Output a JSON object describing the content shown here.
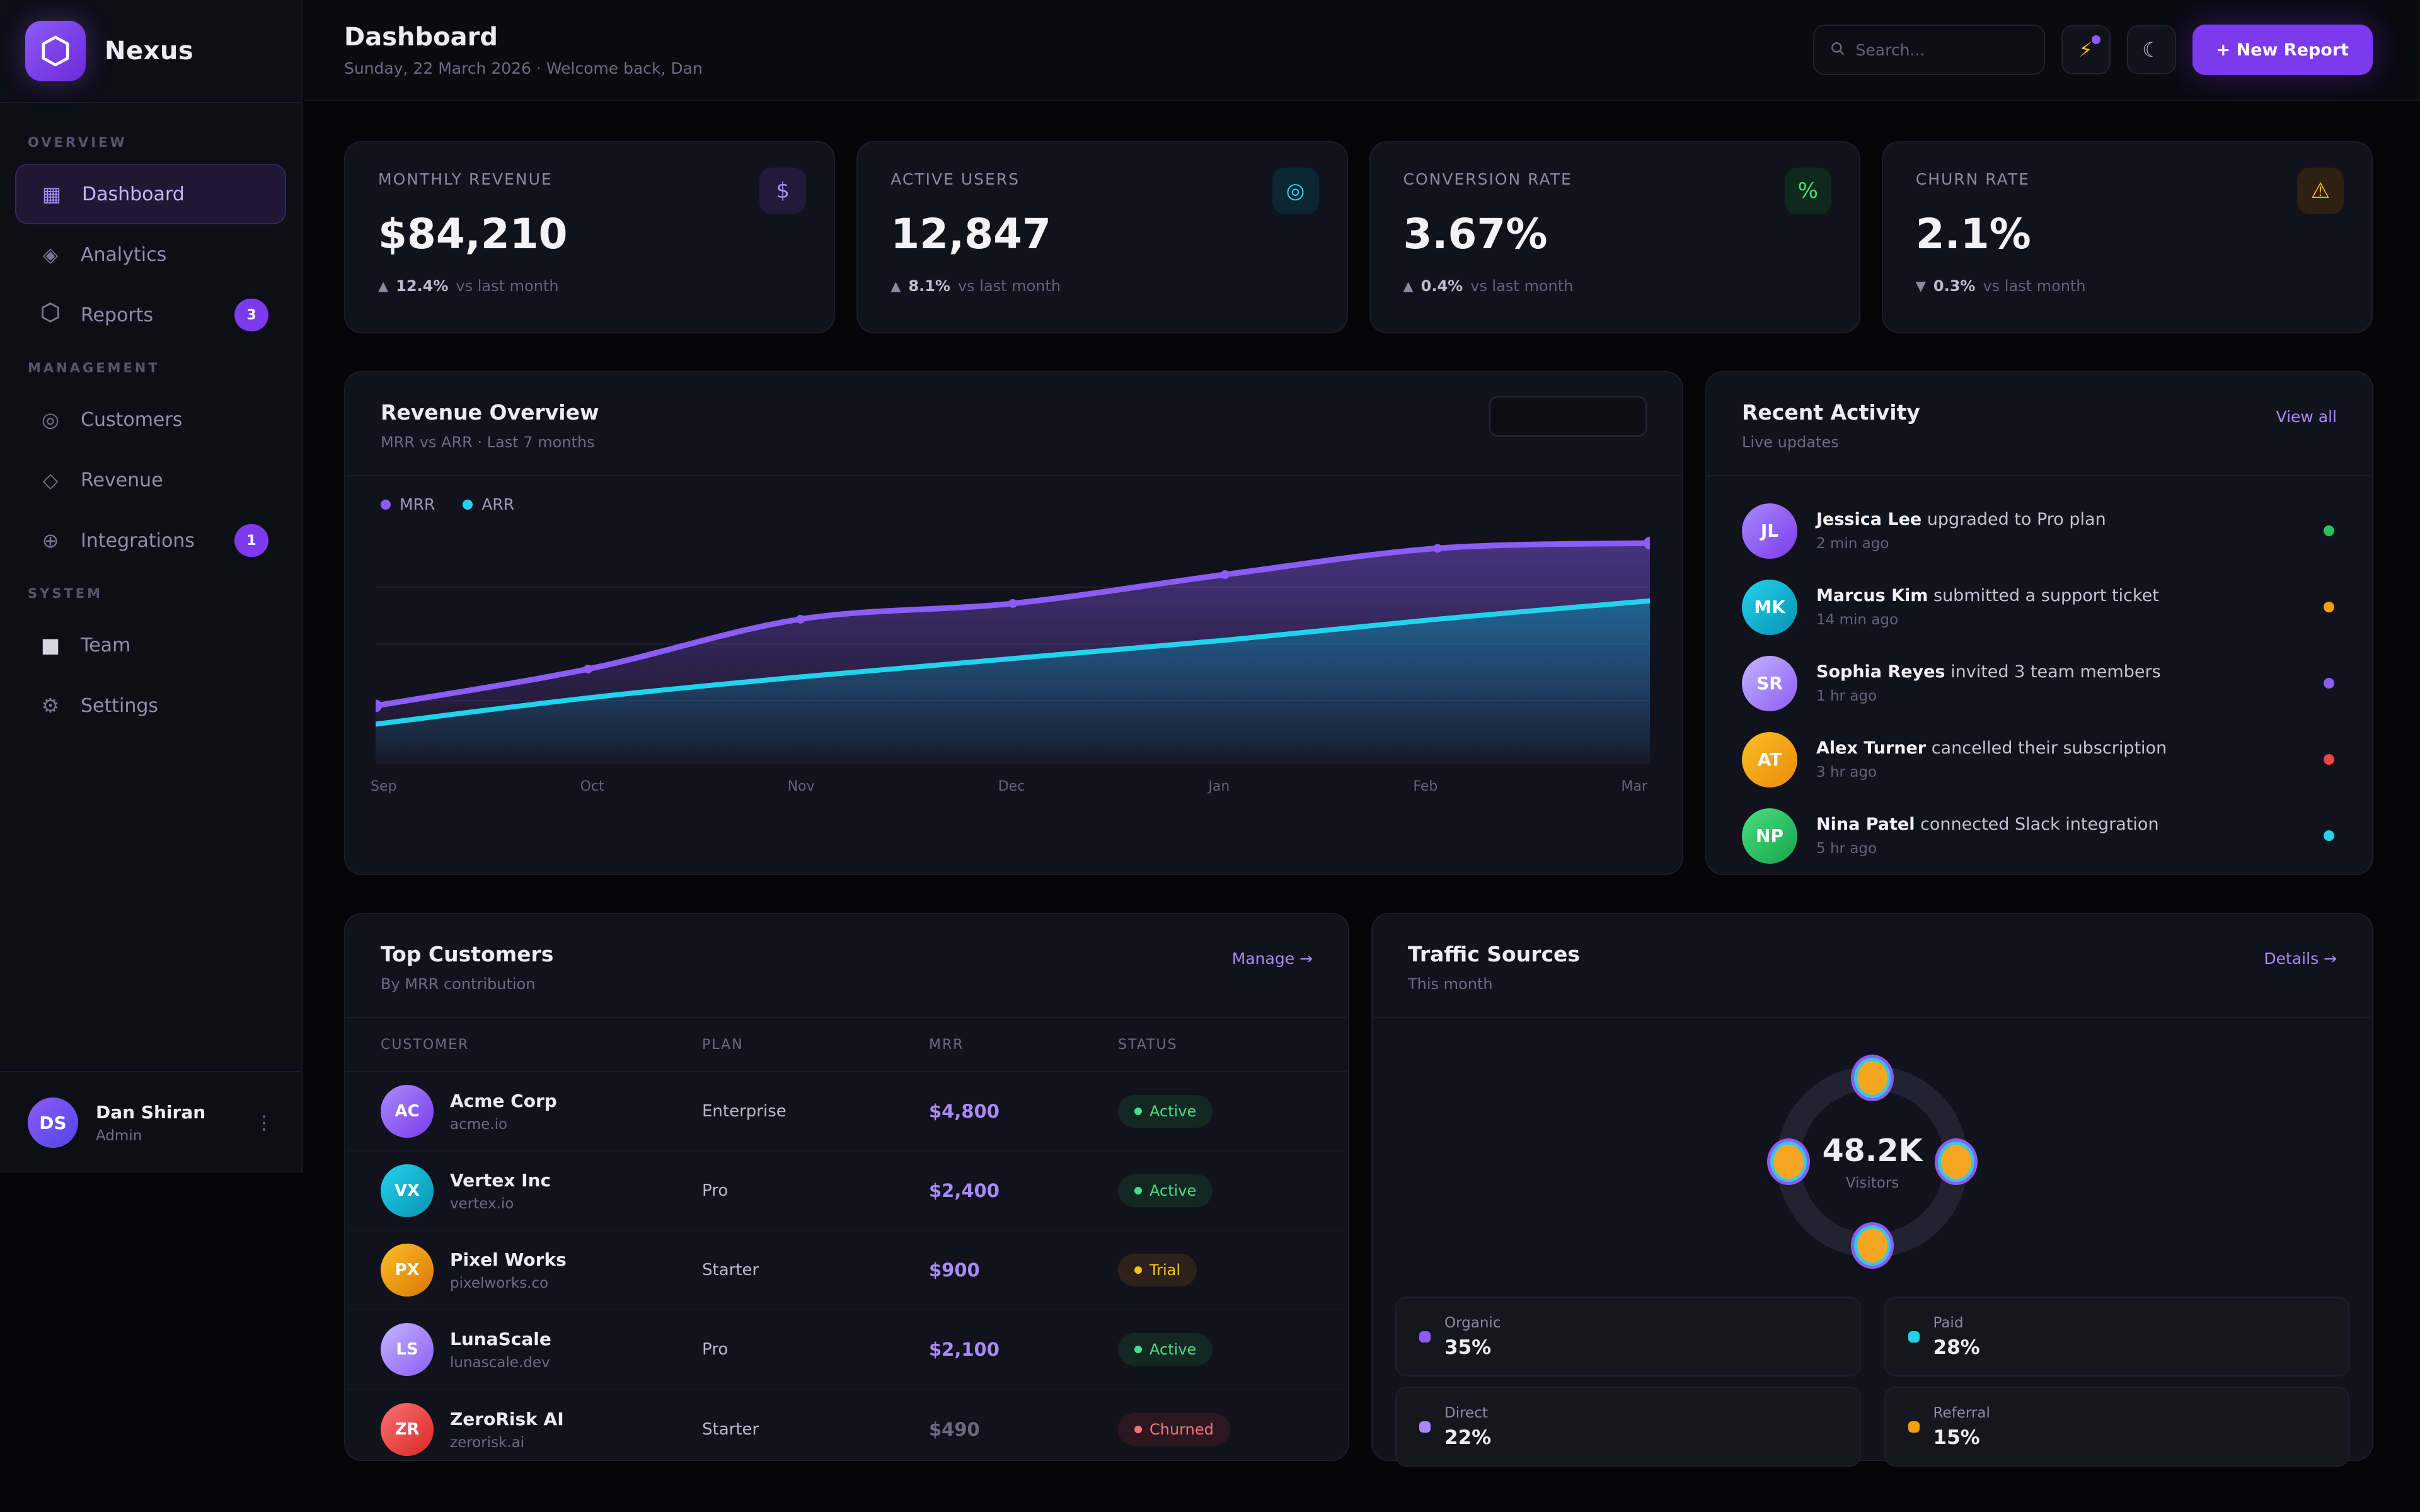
{
  "app": {
    "name": "Nexus"
  },
  "sidebar": {
    "groups": [
      {
        "label": "OVERVIEW",
        "items": [
          {
            "icon": "grid",
            "label": "Dashboard",
            "active": true
          },
          {
            "icon": "diamond-dot",
            "label": "Analytics"
          },
          {
            "icon": "hexagon",
            "label": "Reports",
            "badge": "3"
          }
        ]
      },
      {
        "label": "MANAGEMENT",
        "items": [
          {
            "icon": "target",
            "label": "Customers"
          },
          {
            "icon": "diamond",
            "label": "Revenue"
          },
          {
            "icon": "plus-circle",
            "label": "Integrations",
            "badge": "1"
          }
        ]
      },
      {
        "label": "SYSTEM",
        "items": [
          {
            "icon": "square",
            "label": "Team"
          },
          {
            "icon": "gear",
            "label": "Settings"
          }
        ]
      }
    ],
    "user": {
      "initials": "DS",
      "name": "Dan Shiran",
      "role": "Admin"
    }
  },
  "header": {
    "title": "Dashboard",
    "subtitle": "Sunday, 22 March 2026 · Welcome back, Dan",
    "search_placeholder": "Search...",
    "new_report_label": "+ New Report"
  },
  "kpis": [
    {
      "label": "MONTHLY REVENUE",
      "value": "$84,210",
      "arrow": "▲",
      "pct": "12.4%",
      "suffix": "vs last month",
      "icon": "$",
      "icon_color": "#a78bfa",
      "icon_bg": "#221a3a"
    },
    {
      "label": "ACTIVE USERS",
      "value": "12,847",
      "arrow": "▲",
      "pct": "8.1%",
      "suffix": "vs last month",
      "icon": "◎",
      "icon_color": "#22d3ee",
      "icon_bg": "#0c2733"
    },
    {
      "label": "CONVERSION RATE",
      "value": "3.67%",
      "arrow": "▲",
      "pct": "0.4%",
      "suffix": "vs last month",
      "icon": "%",
      "icon_color": "#4ade80",
      "icon_bg": "#0f2a1c"
    },
    {
      "label": "CHURN RATE",
      "value": "2.1%",
      "arrow": "▼",
      "pct": "0.3%",
      "suffix": "vs last month",
      "icon": "⚠",
      "icon_color": "#fbbf24",
      "icon_bg": "#2e2113"
    }
  ],
  "chart_data": [
    {
      "type": "area",
      "title": "Revenue Overview",
      "subtitle": "MRR vs ARR · Last 7 months",
      "x": [
        "Sep",
        "Oct",
        "Nov",
        "Dec",
        "Jan",
        "Feb",
        "Mar"
      ],
      "series": [
        {
          "name": "MRR",
          "color": "#8b5cf6",
          "values": [
            22,
            36,
            55,
            61,
            72,
            82,
            84
          ]
        },
        {
          "name": "ARR",
          "color": "#22d3ee",
          "values": [
            15,
            25,
            33,
            40,
            47,
            55,
            62
          ]
        }
      ],
      "unit": "estimated $k, unlabeled axis",
      "ylim": [
        0,
        90
      ],
      "grid": "horizontal",
      "legend_position": "top-left"
    },
    {
      "type": "pie",
      "title": "Traffic Sources",
      "total": "48.2K",
      "total_label": "Visitors",
      "slices": [
        {
          "label": "Organic",
          "value": "35%",
          "color": "#8b5cf6"
        },
        {
          "label": "Paid",
          "value": "28%",
          "color": "#22d3ee"
        },
        {
          "label": "Direct",
          "value": "22%",
          "color": "#a78bfa"
        },
        {
          "label": "Referral",
          "value": "15%",
          "color": "#f59e0b"
        }
      ]
    }
  ],
  "activity": {
    "title": "Recent Activity",
    "subtitle": "Live updates",
    "link": "View all",
    "items": [
      {
        "initials": "JL",
        "avatar": "linear-gradient(135deg,#a78bfa,#7c3aed)",
        "name": "Jessica Lee",
        "action": " upgraded to Pro plan",
        "time": "2 min ago",
        "dot": "#22c55e"
      },
      {
        "initials": "MK",
        "avatar": "linear-gradient(135deg,#22d3ee,#0891b2)",
        "name": "Marcus Kim",
        "action": " submitted a support ticket",
        "time": "14 min ago",
        "dot": "#f59e0b"
      },
      {
        "initials": "SR",
        "avatar": "linear-gradient(135deg,#c4b5fd,#8b5cf6)",
        "name": "Sophia Reyes",
        "action": " invited 3 team members",
        "time": "1 hr ago",
        "dot": "#8b5cf6"
      },
      {
        "initials": "AT",
        "avatar": "linear-gradient(135deg,#fbbf24,#ea8a0c)",
        "name": "Alex Turner",
        "action": " cancelled their subscription",
        "time": "3 hr ago",
        "dot": "#ef4444"
      },
      {
        "initials": "NP",
        "avatar": "linear-gradient(135deg,#4ade80,#16a34a)",
        "name": "Nina Patel",
        "action": " connected Slack integration",
        "time": "5 hr ago",
        "dot": "#22d3ee"
      }
    ]
  },
  "customers": {
    "title": "Top Customers",
    "subtitle": "By MRR contribution",
    "link": "Manage →",
    "columns": {
      "customer": "CUSTOMER",
      "plan": "PLAN",
      "mrr": "MRR",
      "status": "STATUS"
    },
    "rows": [
      {
        "initials": "AC",
        "avatar": "linear-gradient(135deg,#a78bfa,#7c3aed)",
        "name": "Acme Corp",
        "domain": "acme.io",
        "plan": "Enterprise",
        "mrr": "$4,800",
        "mrr_color": "#a78bfa",
        "status": "Active",
        "status_color": "#4ade80",
        "status_bg": "rgba(34,197,94,0.12)"
      },
      {
        "initials": "VX",
        "avatar": "linear-gradient(135deg,#22d3ee,#0891b2)",
        "name": "Vertex Inc",
        "domain": "vertex.io",
        "plan": "Pro",
        "mrr": "$2,400",
        "mrr_color": "#a78bfa",
        "status": "Active",
        "status_color": "#4ade80",
        "status_bg": "rgba(34,197,94,0.12)"
      },
      {
        "initials": "PX",
        "avatar": "linear-gradient(135deg,#fbbf24,#d97706)",
        "name": "Pixel Works",
        "domain": "pixelworks.co",
        "plan": "Starter",
        "mrr": "$900",
        "mrr_color": "#a78bfa",
        "status": "Trial",
        "status_color": "#fbbf24",
        "status_bg": "rgba(245,158,11,0.12)"
      },
      {
        "initials": "LS",
        "avatar": "linear-gradient(135deg,#c4b5fd,#8b5cf6)",
        "name": "LunaScale",
        "domain": "lunascale.dev",
        "plan": "Pro",
        "mrr": "$2,100",
        "mrr_color": "#a78bfa",
        "status": "Active",
        "status_color": "#4ade80",
        "status_bg": "rgba(34,197,94,0.12)"
      },
      {
        "initials": "ZR",
        "avatar": "linear-gradient(135deg,#f87171,#dc2626)",
        "name": "ZeroRisk AI",
        "domain": "zerorisk.ai",
        "plan": "Starter",
        "mrr": "$490",
        "mrr_color": "#6b6b80",
        "status": "Churned",
        "status_color": "#f87171",
        "status_bg": "rgba(239,68,68,0.12)"
      }
    ]
  },
  "traffic": {
    "title": "Traffic Sources",
    "subtitle": "This month",
    "link": "Details →"
  }
}
